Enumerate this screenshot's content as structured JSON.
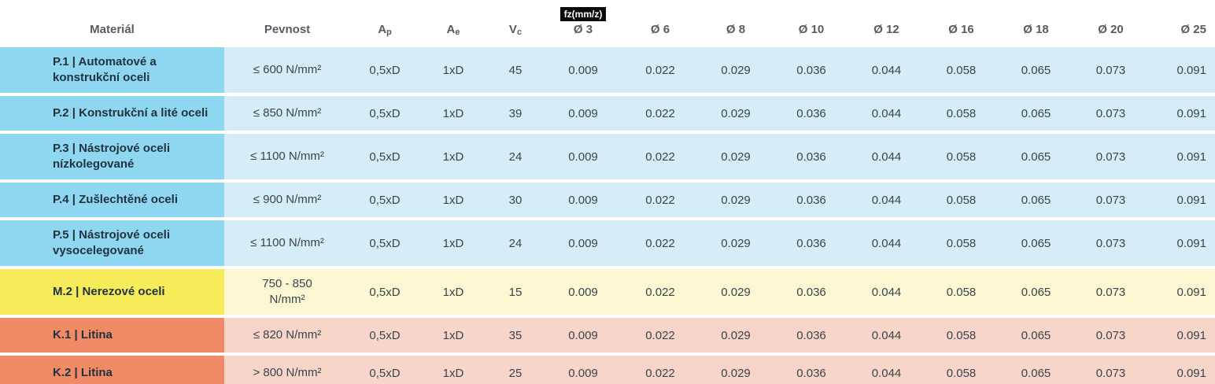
{
  "colors": {
    "header_text": "#565C62",
    "material_text": "#20333F",
    "data_text": "#3A444D",
    "badge_bg": "#0B0B0B",
    "badge_text": "#FFFFFF",
    "groups": {
      "P": {
        "label_bg": "#8FD7F1",
        "body_bg": "#D5EDF9"
      },
      "M": {
        "label_bg": "#F6EB58",
        "body_bg": "#FBF7D2"
      },
      "K": {
        "label_bg": "#F08A67",
        "body_bg": "#F8D5C9"
      }
    }
  },
  "chart_data": {
    "type": "table",
    "columns": [
      "Materiál",
      "Pevnost",
      "Ap",
      "Ae",
      "Vc",
      "Ø 3",
      "Ø 6",
      "Ø 8",
      "Ø 10",
      "Ø 12",
      "Ø 16",
      "Ø 18",
      "Ø 20",
      "Ø 25"
    ],
    "headers": {
      "material": "Materiál",
      "pevnost": "Pevnost",
      "ap": {
        "base": "A",
        "sub": "p"
      },
      "ae": {
        "base": "A",
        "sub": "e"
      },
      "vc": {
        "base": "V",
        "sub": "c"
      },
      "fz_badge": "fz(mm/z)",
      "diameters": [
        "Ø 3",
        "Ø 6",
        "Ø 8",
        "Ø 10",
        "Ø 12",
        "Ø 16",
        "Ø 18",
        "Ø 20",
        "Ø 25"
      ]
    },
    "rows": [
      {
        "group": "P",
        "material": "P.1 | Automatové a\nkonstrukční oceli",
        "pevnost": "≤ 600 N/mm²",
        "ap": "0,5xD",
        "ae": "1xD",
        "vc": "45",
        "fz": [
          "0.009",
          "0.022",
          "0.029",
          "0.036",
          "0.044",
          "0.058",
          "0.065",
          "0.073",
          "0.091"
        ]
      },
      {
        "group": "P",
        "material": "P.2 | Konstrukční a lité oceli",
        "pevnost": "≤ 850 N/mm²",
        "ap": "0,5xD",
        "ae": "1xD",
        "vc": "39",
        "fz": [
          "0.009",
          "0.022",
          "0.029",
          "0.036",
          "0.044",
          "0.058",
          "0.065",
          "0.073",
          "0.091"
        ]
      },
      {
        "group": "P",
        "material": "P.3 | Nástrojové oceli\nnízkolegované",
        "pevnost": "≤ 1100 N/mm²",
        "ap": "0,5xD",
        "ae": "1xD",
        "vc": "24",
        "fz": [
          "0.009",
          "0.022",
          "0.029",
          "0.036",
          "0.044",
          "0.058",
          "0.065",
          "0.073",
          "0.091"
        ]
      },
      {
        "group": "P",
        "material": "P.4 | Zušlechtěné oceli",
        "pevnost": "≤ 900 N/mm²",
        "ap": "0,5xD",
        "ae": "1xD",
        "vc": "30",
        "fz": [
          "0.009",
          "0.022",
          "0.029",
          "0.036",
          "0.044",
          "0.058",
          "0.065",
          "0.073",
          "0.091"
        ]
      },
      {
        "group": "P",
        "material": "P.5 | Nástrojové oceli\nvysocelegované",
        "pevnost": "≤ 1100 N/mm²",
        "ap": "0,5xD",
        "ae": "1xD",
        "vc": "24",
        "fz": [
          "0.009",
          "0.022",
          "0.029",
          "0.036",
          "0.044",
          "0.058",
          "0.065",
          "0.073",
          "0.091"
        ]
      },
      {
        "group": "M",
        "material": "M.2 | Nerezové oceli",
        "pevnost": "750 - 850\nN/mm²",
        "ap": "0,5xD",
        "ae": "1xD",
        "vc": "15",
        "fz": [
          "0.009",
          "0.022",
          "0.029",
          "0.036",
          "0.044",
          "0.058",
          "0.065",
          "0.073",
          "0.091"
        ]
      },
      {
        "group": "K",
        "material": "K.1 | Litina",
        "pevnost": "≤ 820 N/mm²",
        "ap": "0,5xD",
        "ae": "1xD",
        "vc": "35",
        "fz": [
          "0.009",
          "0.022",
          "0.029",
          "0.036",
          "0.044",
          "0.058",
          "0.065",
          "0.073",
          "0.091"
        ]
      },
      {
        "group": "K",
        "material": "K.2 | Litina",
        "pevnost": "> 800 N/mm²",
        "ap": "0,5xD",
        "ae": "1xD",
        "vc": "25",
        "fz": [
          "0.009",
          "0.022",
          "0.029",
          "0.036",
          "0.044",
          "0.058",
          "0.065",
          "0.073",
          "0.091"
        ]
      }
    ]
  }
}
